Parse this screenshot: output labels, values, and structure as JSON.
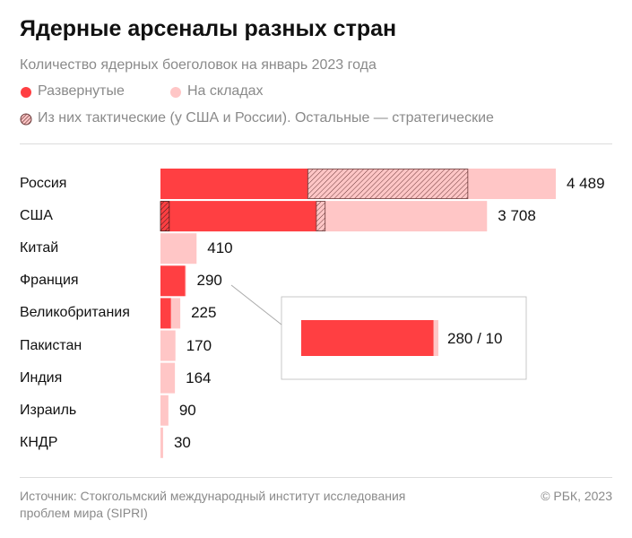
{
  "title": "Ядерные арсеналы разных стран",
  "subtitle": "Количество ядерных боеголовок на январь 2023 года",
  "legend": {
    "deployed": "Развернутые",
    "stored": "На складах",
    "tactical": "Из них тактические (у США и России). Остальные — стратегические"
  },
  "colors": {
    "deployed": "#ff3f42",
    "stored": "#ffc6c6",
    "hatch": "#6b3b3b"
  },
  "chart_data": {
    "type": "bar",
    "orientation": "horizontal",
    "stacked": true,
    "categories": [
      "Россия",
      "США",
      "Китай",
      "Франция",
      "Великобритания",
      "Пакистан",
      "Индия",
      "Израиль",
      "КНДР"
    ],
    "series": [
      {
        "name": "Развернутые",
        "values": [
          1674,
          1770,
          0,
          280,
          120,
          0,
          0,
          0,
          0
        ]
      },
      {
        "name": "На складах",
        "values": [
          2815,
          1938,
          410,
          10,
          105,
          170,
          164,
          90,
          30
        ]
      }
    ],
    "tactical_deployed": [
      0,
      100,
      0,
      0,
      0,
      0,
      0,
      0,
      0
    ],
    "tactical_stored": [
      1816,
      100,
      0,
      0,
      0,
      0,
      0,
      0,
      0
    ],
    "total_labels": [
      "4 489",
      "3 708",
      "410",
      "290",
      "225",
      "170",
      "164",
      "90",
      "30"
    ],
    "inset": {
      "category": "Франция",
      "label": "280 / 10"
    },
    "grid": false
  },
  "footer": {
    "source": "Источник: Стокгольмский международный институт исследования проблем мира (SIPRI)",
    "source_line1": "Источник: Стокгольмский международный институт исследования",
    "source_line2": "проблем мира (SIPRI)",
    "copyright": "© РБК, 2023"
  }
}
